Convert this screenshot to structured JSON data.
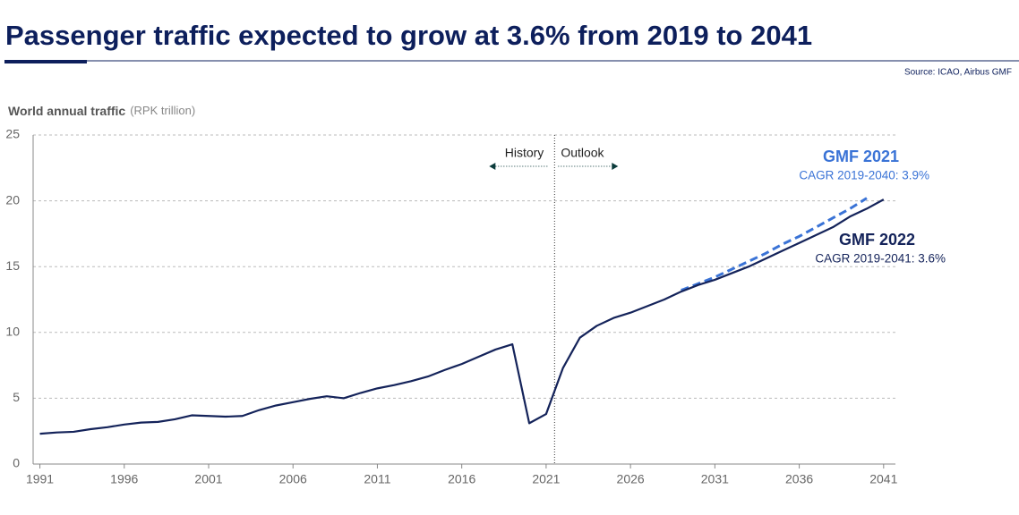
{
  "chart_data": {
    "type": "line",
    "title": "Passenger traffic expected to grow at 3.6% from 2019 to 2041",
    "source": "Source: ICAO, Airbus GMF",
    "y_axis_title": "World annual traffic",
    "y_axis_unit": "(RPK trillion)",
    "history_label": "History",
    "outlook_label": "Outlook",
    "x": [
      1991,
      1992,
      1993,
      1994,
      1995,
      1996,
      1997,
      1998,
      1999,
      2000,
      2001,
      2002,
      2003,
      2004,
      2005,
      2006,
      2007,
      2008,
      2009,
      2010,
      2011,
      2012,
      2013,
      2014,
      2015,
      2016,
      2017,
      2018,
      2019,
      2020,
      2021,
      2022,
      2023,
      2024,
      2025,
      2026,
      2027,
      2028,
      2029,
      2030,
      2031,
      2032,
      2033,
      2034,
      2035,
      2036,
      2037,
      2038,
      2039,
      2040,
      2041
    ],
    "series": [
      {
        "name": "GMF 2021",
        "subtitle": "CAGR 2019-2040: 3.9%",
        "color": "#3a73d6",
        "dashed": true,
        "values": [
          null,
          null,
          null,
          null,
          null,
          null,
          null,
          null,
          null,
          null,
          null,
          null,
          null,
          null,
          null,
          null,
          null,
          null,
          null,
          null,
          null,
          null,
          null,
          null,
          null,
          null,
          null,
          null,
          null,
          null,
          null,
          null,
          null,
          null,
          null,
          null,
          null,
          null,
          13.2,
          13.7,
          14.2,
          14.8,
          15.4,
          16.0,
          16.7,
          17.3,
          18.0,
          18.7,
          19.4,
          20.2,
          null
        ]
      },
      {
        "name": "GMF 2022",
        "subtitle": "CAGR 2019-2041: 3.6%",
        "color": "#14235a",
        "dashed": false,
        "values": [
          2.3,
          2.4,
          2.45,
          2.65,
          2.8,
          3.0,
          3.15,
          3.2,
          3.4,
          3.7,
          3.65,
          3.6,
          3.65,
          4.1,
          4.45,
          4.7,
          4.95,
          5.15,
          5.0,
          5.4,
          5.75,
          6.0,
          6.3,
          6.65,
          7.15,
          7.6,
          8.15,
          8.7,
          9.1,
          3.1,
          3.8,
          7.3,
          9.6,
          10.5,
          11.1,
          11.5,
          12.0,
          12.5,
          13.1,
          13.6,
          14.0,
          14.5,
          15.0,
          15.6,
          16.2,
          16.8,
          17.4,
          18.0,
          18.8,
          19.4,
          20.1
        ]
      }
    ],
    "xlim": [
      1990.6,
      2041.7
    ],
    "xticks": [
      1991,
      1996,
      2001,
      2006,
      2011,
      2016,
      2021,
      2026,
      2031,
      2036,
      2041
    ],
    "ylim": [
      0,
      25
    ],
    "yticks": [
      0,
      5,
      10,
      15,
      20,
      25
    ],
    "grid": true
  }
}
